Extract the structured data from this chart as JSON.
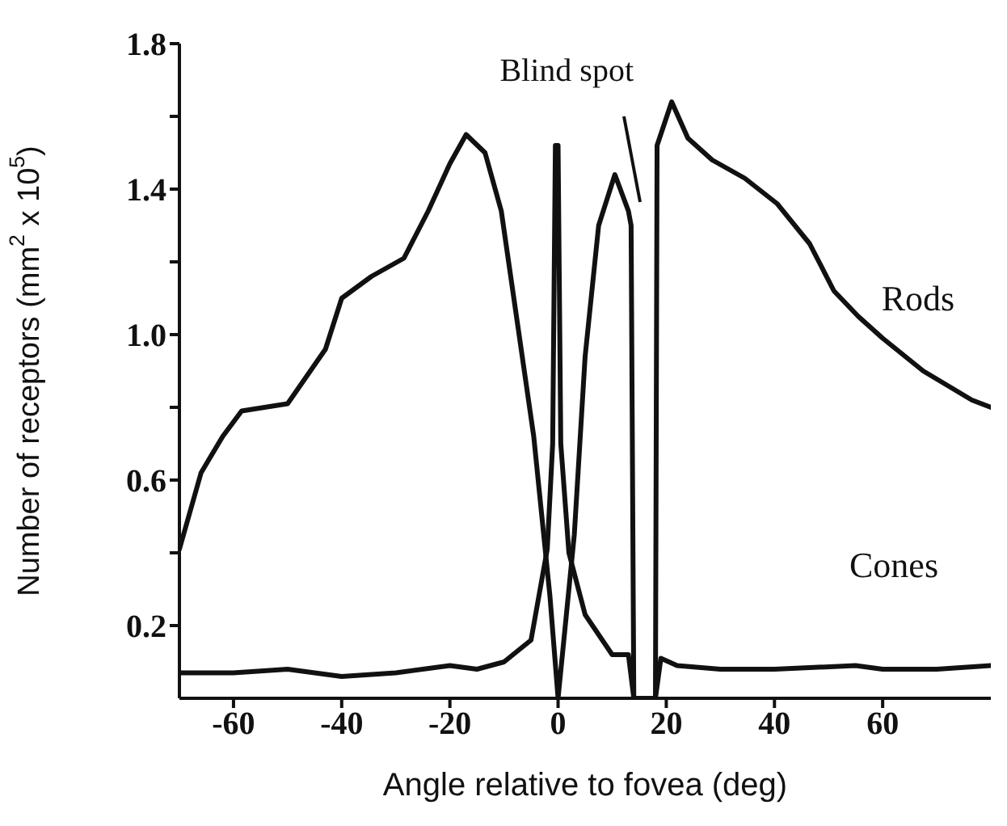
{
  "chart_data": {
    "type": "line",
    "xlabel": "Angle relative to fovea (deg)",
    "ylabel": "Number of receptors (mm$^{2}$ x 10$^{5}$)",
    "xlim": [
      -70,
      80
    ],
    "xticks": [
      -60,
      -40,
      -20,
      0,
      20,
      40,
      60
    ],
    "ylim": [
      0,
      1.8
    ],
    "yticks": [
      0.2,
      {
        "value": 0.4,
        "label": null
      },
      0.6,
      {
        "value": 0.8,
        "label": null
      },
      {
        "value": 1.0,
        "label": "1.0"
      },
      {
        "value": 1.2,
        "label": null
      },
      1.4,
      {
        "value": 1.6,
        "label": null
      },
      1.8
    ],
    "grid": false,
    "legend": false,
    "marker": "none",
    "line_style": "solid",
    "annotations": [
      "Blind spot"
    ],
    "series": [
      {
        "name": "Rods",
        "color": "#111111",
        "x": [
          -70,
          -66,
          -62,
          -58.5,
          -50,
          -43,
          -40,
          -34.5,
          -28.5,
          -24,
          -20,
          -17,
          -13.5,
          -10.5,
          -7.5,
          -4.5,
          -1.5,
          0,
          3,
          5,
          7.5,
          10.5,
          13,
          13.5,
          14,
          18,
          18.3,
          21,
          24,
          28.5,
          34.5,
          40.5,
          46.5,
          51,
          55.5,
          60,
          67.5,
          76.5,
          80
        ],
        "values": [
          0.41,
          0.62,
          0.72,
          0.79,
          0.81,
          0.96,
          1.1,
          1.16,
          1.21,
          1.34,
          1.47,
          1.55,
          1.5,
          1.34,
          1.03,
          0.72,
          0.28,
          0,
          0.45,
          0.94,
          1.3,
          1.44,
          1.34,
          1.3,
          0,
          0,
          1.52,
          1.64,
          1.54,
          1.48,
          1.43,
          1.36,
          1.25,
          1.12,
          1.05,
          0.99,
          0.9,
          0.82,
          0.8
        ]
      },
      {
        "name": "Cones",
        "color": "#111111",
        "x": [
          -70,
          -60,
          -50,
          -40,
          -30,
          -20,
          -15,
          -10,
          -5,
          -2,
          -1,
          -0.5,
          0,
          0.5,
          1,
          2,
          5,
          10,
          13,
          14,
          18,
          19,
          22,
          30,
          40,
          55,
          60,
          70,
          80
        ],
        "values": [
          0.07,
          0.07,
          0.08,
          0.06,
          0.07,
          0.09,
          0.08,
          0.1,
          0.16,
          0.41,
          0.7,
          1.52,
          1.52,
          0.7,
          0.6,
          0.4,
          0.23,
          0.12,
          0.12,
          0,
          0,
          0.11,
          0.09,
          0.08,
          0.08,
          0.09,
          0.08,
          0.08,
          0.09
        ]
      }
    ]
  }
}
